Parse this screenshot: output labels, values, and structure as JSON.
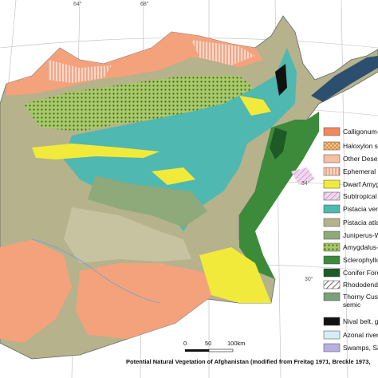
{
  "graticule_labels": [
    "64°",
    "68°",
    "34°",
    "30°"
  ],
  "legend": [
    "Calligonum-A",
    "Haloxylon sa",
    "Other Desert",
    "Ephemeral D",
    "Dwarf Amygd",
    "Subtropical d",
    "Pistacia vera",
    "Pistacia atlan",
    "Juniperus-Wi",
    "Amygdalus-W",
    "Sclerophyllou",
    "Conifer Fores",
    "Rhododendro",
    "Thorny Cush",
    "semic",
    "Nival belt, gl",
    "Azonal riveri",
    "Swamps, Sa"
  ],
  "scale_bar": [
    "0",
    "50",
    "100km"
  ],
  "caption": "Potential Natural Vegetation of Afghanistan (modified from Freitag 1971, Breckle 1973,"
}
